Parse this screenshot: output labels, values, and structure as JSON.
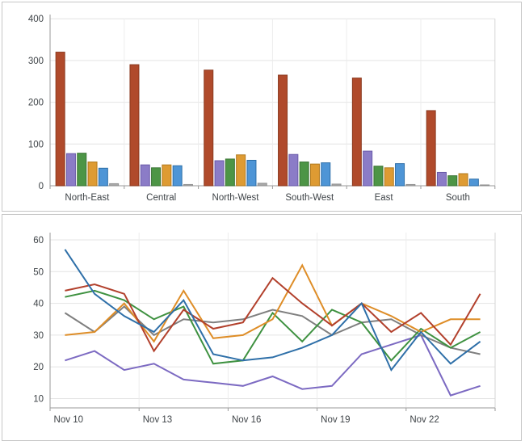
{
  "chart_data": [
    {
      "type": "bar",
      "title": "",
      "categories": [
        "North-East",
        "Central",
        "North-West",
        "South-West",
        "East",
        "South"
      ],
      "series": [
        {
          "name": "series-red",
          "color": "#B04A2B",
          "border": "#8B3A1F",
          "values": [
            320,
            290,
            277,
            265,
            258,
            180
          ]
        },
        {
          "name": "series-purple",
          "color": "#8B7CC7",
          "border": "#6A5AA9",
          "values": [
            77,
            50,
            60,
            75,
            83,
            32
          ]
        },
        {
          "name": "series-green",
          "color": "#4D9546",
          "border": "#3A7434",
          "values": [
            78,
            43,
            64,
            57,
            47,
            24
          ]
        },
        {
          "name": "series-orange",
          "color": "#DE9B33",
          "border": "#B27A1E",
          "values": [
            57,
            50,
            74,
            52,
            43,
            29
          ]
        },
        {
          "name": "series-blue",
          "color": "#4E95D6",
          "border": "#2E6FA8",
          "values": [
            42,
            48,
            61,
            55,
            53,
            16
          ]
        },
        {
          "name": "series-gray",
          "color": "#A9A9A9",
          "border": "#8F8F8F",
          "values": [
            5,
            3,
            6,
            4,
            3,
            2
          ]
        }
      ],
      "ylabel": "",
      "xlabel": "",
      "ylim": [
        0,
        400
      ],
      "yticks": [
        0,
        100,
        200,
        300,
        400
      ],
      "grid": true,
      "legend": "none"
    },
    {
      "type": "line",
      "title": "",
      "categories": [
        "Nov 10",
        "Nov 11",
        "Nov 12",
        "Nov 13",
        "Nov 14",
        "Nov 15",
        "Nov 16",
        "Nov 17",
        "Nov 18",
        "Nov 19",
        "Nov 20",
        "Nov 21",
        "Nov 22",
        "Nov 23",
        "Nov 24"
      ],
      "x_tick_labels": [
        "Nov 10",
        "Nov 13",
        "Nov 16",
        "Nov 19",
        "Nov 22"
      ],
      "series": [
        {
          "name": "series-purple",
          "color": "#7C6AC2",
          "values": [
            22,
            25,
            19,
            21,
            16,
            15,
            14,
            17,
            13,
            14,
            24,
            27,
            30,
            11,
            14
          ]
        },
        {
          "name": "series-gray",
          "color": "#7F7F7F",
          "values": [
            37,
            31,
            39,
            30,
            35,
            34,
            35,
            38,
            36,
            30,
            34,
            35,
            30,
            26,
            24
          ]
        },
        {
          "name": "series-green",
          "color": "#3E9140",
          "values": [
            42,
            44,
            41,
            35,
            39,
            21,
            22,
            37,
            28,
            38,
            34,
            22,
            32,
            26,
            31
          ]
        },
        {
          "name": "series-orange",
          "color": "#DE8D27",
          "values": [
            30,
            31,
            40,
            28,
            44,
            29,
            30,
            35,
            52,
            33,
            40,
            36,
            31,
            35,
            35
          ]
        },
        {
          "name": "series-red",
          "color": "#B2402C",
          "values": [
            44,
            46,
            43,
            25,
            38,
            32,
            34,
            48,
            40,
            33,
            40,
            31,
            37,
            27,
            43
          ]
        },
        {
          "name": "series-blue",
          "color": "#2E6FA8",
          "values": [
            57,
            43,
            36,
            31,
            41,
            24,
            22,
            23,
            26,
            30,
            40,
            19,
            31,
            21,
            28
          ]
        }
      ],
      "ylabel": "",
      "xlabel": "",
      "ylim": [
        10,
        60
      ],
      "yticks": [
        10,
        20,
        30,
        40,
        50,
        60
      ],
      "grid": true,
      "legend": "none"
    }
  ],
  "colors": {
    "gridline": "#e4e4e4",
    "vertical_gridline": "#ececec",
    "axis": "#9a9a9a",
    "plot_right_border": "#d5d5d5",
    "label_text": "#3e4347",
    "panel_border": "#c6c6c6"
  }
}
